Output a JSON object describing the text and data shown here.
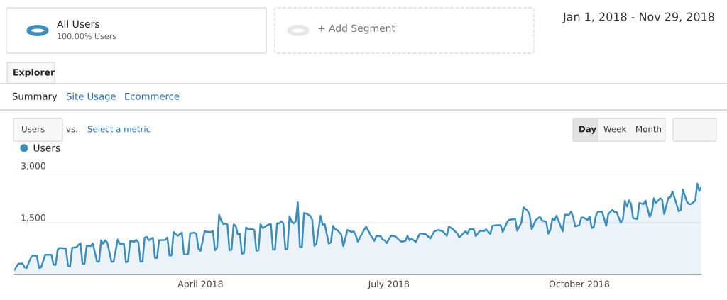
{
  "chart_data": {
    "type": "area",
    "annotations": [
      "All Users",
      "100.00% Users",
      "+ Add Segment",
      "Jan 1, 2018 - Nov 29, 2018",
      "Explorer",
      "Summary",
      "Site Usage",
      "Ecommerce",
      "Users",
      "vs.",
      "Select a metric",
      "Day",
      "Week",
      "Month"
    ],
    "x": [
      "2018-01-01",
      "2018-01-03",
      "2018-01-05",
      "2018-01-06",
      "2018-01-07",
      "2018-01-09",
      "2018-01-10",
      "2018-01-12",
      "2018-01-13",
      "2018-01-14",
      "2018-01-16",
      "2018-01-19",
      "2018-01-20",
      "2018-01-21",
      "2018-01-22",
      "2018-01-23",
      "2018-01-26",
      "2018-01-27",
      "2018-01-28",
      "2018-01-29",
      "2018-01-31",
      "2018-02-02",
      "2018-02-03",
      "2018-02-04",
      "2018-02-05",
      "2018-02-07",
      "2018-02-08",
      "2018-02-10",
      "2018-02-11",
      "2018-02-12",
      "2018-02-13",
      "2018-02-14",
      "2018-02-15",
      "2018-02-17",
      "2018-02-18",
      "2018-02-20",
      "2018-02-21",
      "2018-02-23",
      "2018-02-24",
      "2018-02-25",
      "2018-02-26",
      "2018-02-28",
      "2018-03-01",
      "2018-03-02",
      "2018-03-03",
      "2018-03-04",
      "2018-03-05",
      "2018-03-06",
      "2018-03-07",
      "2018-03-09",
      "2018-03-10",
      "2018-03-11",
      "2018-03-12",
      "2018-03-15",
      "2018-03-16",
      "2018-03-17",
      "2018-03-18",
      "2018-03-19",
      "2018-03-21",
      "2018-03-23",
      "2018-03-24",
      "2018-03-26",
      "2018-03-27",
      "2018-03-29",
      "2018-03-30",
      "2018-03-31",
      "2018-04-01",
      "2018-04-03",
      "2018-04-06",
      "2018-04-07",
      "2018-04-08",
      "2018-04-09",
      "2018-04-10",
      "2018-04-11",
      "2018-04-12",
      "2018-04-13",
      "2018-04-14",
      "2018-04-15",
      "2018-04-16",
      "2018-04-17",
      "2018-04-18",
      "2018-04-19",
      "2018-04-20",
      "2018-04-21",
      "2018-04-22",
      "2018-04-23",
      "2018-04-24",
      "2018-04-26",
      "2018-04-27",
      "2018-04-28",
      "2018-04-29",
      "2018-04-30",
      "2018-05-01",
      "2018-05-04",
      "2018-05-05",
      "2018-05-06",
      "2018-05-07",
      "2018-05-08",
      "2018-05-09",
      "2018-05-10",
      "2018-05-11",
      "2018-05-12",
      "2018-05-13",
      "2018-05-14",
      "2018-05-15",
      "2018-05-16",
      "2018-05-17",
      "2018-05-18",
      "2018-05-19",
      "2018-05-20",
      "2018-05-21",
      "2018-05-22",
      "2018-05-24",
      "2018-05-25",
      "2018-05-26",
      "2018-05-27",
      "2018-05-29",
      "2018-05-30",
      "2018-05-31",
      "2018-06-02",
      "2018-06-03",
      "2018-06-04",
      "2018-06-05",
      "2018-06-06",
      "2018-06-08",
      "2018-06-09",
      "2018-06-11",
      "2018-06-13",
      "2018-06-14",
      "2018-06-15",
      "2018-06-16",
      "2018-06-18",
      "2018-06-20",
      "2018-06-22",
      "2018-06-24",
      "2018-06-25",
      "2018-06-27",
      "2018-06-28",
      "2018-06-29",
      "2018-06-30",
      "2018-07-02",
      "2018-07-04",
      "2018-07-06",
      "2018-07-07",
      "2018-07-09",
      "2018-07-10",
      "2018-07-11",
      "2018-07-12",
      "2018-07-14",
      "2018-07-16",
      "2018-07-19",
      "2018-07-21",
      "2018-07-23",
      "2018-07-25",
      "2018-07-27",
      "2018-07-29",
      "2018-07-30",
      "2018-08-01",
      "2018-08-03",
      "2018-08-04",
      "2018-08-07",
      "2018-08-08",
      "2018-08-09",
      "2018-08-11",
      "2018-08-12",
      "2018-08-13",
      "2018-08-14",
      "2018-08-16",
      "2018-08-17",
      "2018-08-19",
      "2018-08-20",
      "2018-08-22",
      "2018-08-24",
      "2018-08-25",
      "2018-08-27",
      "2018-08-28",
      "2018-08-31",
      "2018-09-01",
      "2018-09-03",
      "2018-09-04",
      "2018-09-06",
      "2018-09-07",
      "2018-09-08",
      "2018-09-10",
      "2018-09-12",
      "2018-09-13",
      "2018-09-15",
      "2018-09-16",
      "2018-09-17",
      "2018-09-18",
      "2018-09-19",
      "2018-09-20",
      "2018-09-23",
      "2018-09-24",
      "2018-09-26",
      "2018-09-27",
      "2018-09-28",
      "2018-09-29",
      "2018-10-01",
      "2018-10-02",
      "2018-10-03",
      "2018-10-05",
      "2018-10-06",
      "2018-10-07",
      "2018-10-08",
      "2018-10-09",
      "2018-10-10",
      "2018-10-12",
      "2018-10-14",
      "2018-10-15",
      "2018-10-17",
      "2018-10-18",
      "2018-10-19",
      "2018-10-21",
      "2018-10-22",
      "2018-10-23",
      "2018-10-24",
      "2018-10-25",
      "2018-10-26",
      "2018-10-27",
      "2018-10-29",
      "2018-10-30",
      "2018-11-01",
      "2018-11-02",
      "2018-11-04",
      "2018-11-05",
      "2018-11-06",
      "2018-11-07",
      "2018-11-09",
      "2018-11-10",
      "2018-11-11",
      "2018-11-13",
      "2018-11-14",
      "2018-11-15",
      "2018-11-16",
      "2018-11-18",
      "2018-11-19",
      "2018-11-20",
      "2018-11-22",
      "2018-11-23",
      "2018-11-24",
      "2018-11-26",
      "2018-11-27",
      "2018-11-28",
      "2018-11-29"
    ],
    "series": [
      {
        "name": "Users",
        "color": "#3b8dbd",
        "values": [
          120,
          310,
          320,
          210,
          190,
          480,
          550,
          530,
          190,
          210,
          570,
          570,
          280,
          280,
          720,
          770,
          750,
          260,
          230,
          770,
          790,
          910,
          310,
          310,
          830,
          820,
          900,
          370,
          370,
          990,
          890,
          990,
          920,
          370,
          370,
          1010,
          890,
          890,
          350,
          380,
          970,
          950,
          1000,
          930,
          370,
          380,
          1060,
          1090,
          990,
          1070,
          480,
          480,
          990,
          1000,
          1070,
          550,
          550,
          1230,
          1120,
          1210,
          580,
          580,
          1190,
          1210,
          1180,
          750,
          680,
          1250,
          1230,
          1260,
          700,
          770,
          1730,
          1560,
          1460,
          1480,
          1450,
          700,
          720,
          1450,
          1410,
          1160,
          1190,
          600,
          620,
          1360,
          1310,
          1310,
          1290,
          680,
          700,
          1460,
          1340,
          1450,
          1460,
          720,
          720,
          1480,
          1480,
          1540,
          1480,
          730,
          750,
          1690,
          1530,
          1480,
          1540,
          2090,
          800,
          790,
          1780,
          1770,
          1700,
          1580,
          830,
          890,
          1700,
          1440,
          1460,
          890,
          930,
          1410,
          1310,
          1290,
          1160,
          820,
          1290,
          1230,
          1250,
          1140,
          950,
          1180,
          1390,
          1160,
          970,
          1120,
          1110,
          1010,
          990,
          910,
          1120,
          1110,
          1000,
          950,
          970,
          1120,
          990,
          1040,
          940,
          1190,
          1160,
          1040,
          1250,
          1290,
          1250,
          1120,
          1390,
          1310,
          1190,
          1070,
          1250,
          1180,
          1310,
          1310,
          1110,
          1190,
          1270,
          1260,
          1310,
          1170,
          1410,
          1430,
          1430,
          1230,
          1500,
          1580,
          1610,
          1270,
          1500,
          1950,
          1850,
          1730,
          1310,
          1580,
          1670,
          1560,
          1530,
          1180,
          1290,
          1620,
          1560,
          1700,
          1250,
          1730,
          1730,
          1820,
          1670,
          1390,
          1430,
          1650,
          1650,
          1580,
          1680,
          1340,
          1380,
          1700,
          1820,
          1820,
          1410,
          1750,
          1880,
          1810,
          1810,
          1500,
          1580,
          2130,
          1970,
          2150,
          2040,
          1630,
          1610,
          2070,
          2040,
          2140,
          1670,
          1800,
          2210,
          2070,
          2210,
          2170,
          1750,
          2220,
          2240,
          2400,
          2220,
          1830,
          1870,
          2460,
          2110,
          2040,
          2040,
          2140,
          2630,
          2420,
          2550
        ]
      }
    ],
    "xlim": [
      "2018-01-01",
      "2018-11-29"
    ],
    "xticks": [
      {
        "value": "2018-04-01",
        "label": "April 2018"
      },
      {
        "value": "2018-07-01",
        "label": "July 2018"
      },
      {
        "value": "2018-10-01",
        "label": "October 2018"
      }
    ],
    "ylim": [
      0,
      3000
    ],
    "yticks": [
      {
        "value": 1500,
        "label": "1,500"
      },
      {
        "value": 3000,
        "label": "3,000"
      }
    ],
    "grid": "y",
    "legend": "top left",
    "marker": "none",
    "line_style": "solid"
  }
}
